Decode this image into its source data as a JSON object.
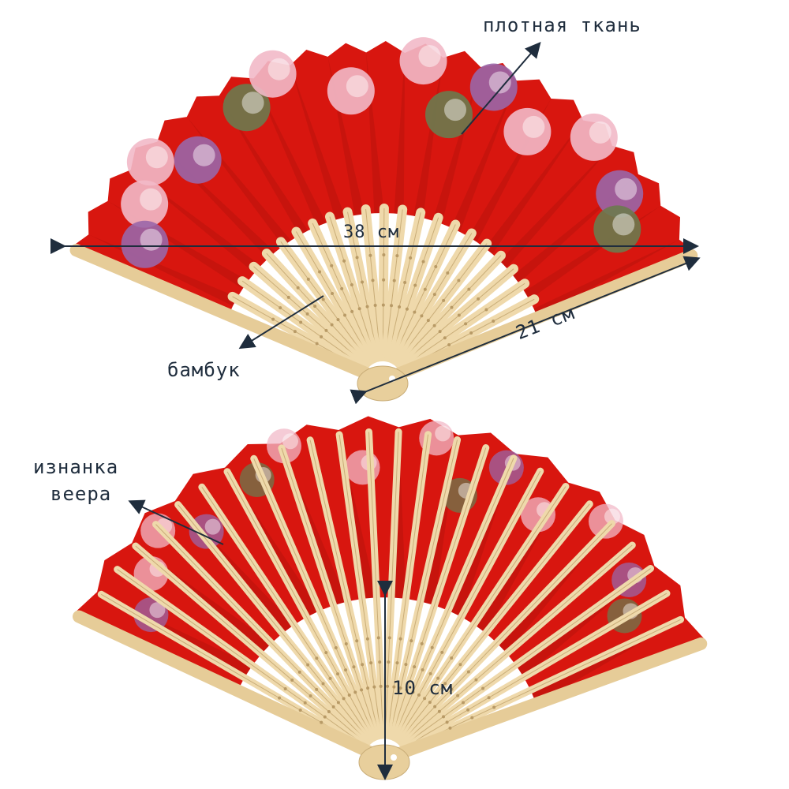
{
  "annotations": {
    "fabric": "плотная ткань",
    "width": "38 см",
    "length": "21 см",
    "bamboo": "бамбук",
    "reverse_side": "изнанка\nвеера",
    "reverse_line1": "изнанка",
    "reverse_line2": "веера",
    "height": "10 см"
  },
  "colors": {
    "fabric": "#d8160f",
    "bamboo": "#efd9ab",
    "flower_pink": "#f2b9c8",
    "flower_purple": "#9a66a8",
    "leaf": "#6b7a4e",
    "annotation": "#1f2d3d"
  }
}
